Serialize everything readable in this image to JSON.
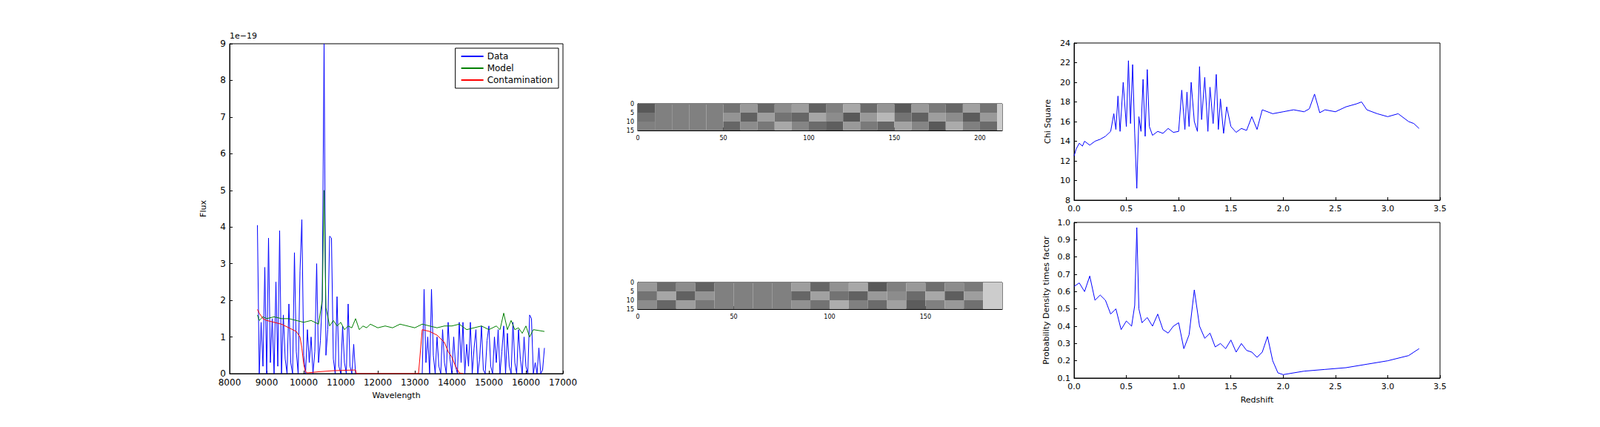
{
  "chart_data": [
    {
      "type": "line",
      "x_label": "Wavelength",
      "y_label": "Flux",
      "y_offset_text": "1e−19",
      "xlim": [
        8000,
        17000
      ],
      "xticks": [
        8000,
        9000,
        10000,
        11000,
        12000,
        13000,
        14000,
        15000,
        16000,
        17000
      ],
      "ylim": [
        0,
        9
      ],
      "yticks": [
        0,
        1,
        2,
        3,
        4,
        5,
        6,
        7,
        8,
        9
      ],
      "grid": false,
      "legend": "upper right",
      "series": [
        {
          "name": "Data",
          "color": "#0000ff",
          "x": [
            8750,
            8800,
            8850,
            8900,
            8950,
            9000,
            9050,
            9100,
            9150,
            9200,
            9250,
            9300,
            9350,
            9400,
            9450,
            9500,
            9550,
            9600,
            9650,
            9700,
            9750,
            9800,
            9850,
            9900,
            9950,
            10000,
            10050,
            10100,
            10150,
            10200,
            10250,
            10300,
            10350,
            10400,
            10450,
            10500,
            10550,
            10600,
            10650,
            10700,
            10750,
            10800,
            10850,
            10900,
            10950,
            11000,
            11050,
            11100,
            11150,
            11200,
            11250,
            11300,
            11350,
            11400,
            12300,
            13200,
            13250,
            13300,
            13350,
            13400,
            13450,
            13500,
            13550,
            13600,
            13650,
            13700,
            13750,
            13800,
            13850,
            13900,
            13950,
            14000,
            14050,
            14100,
            14150,
            14200,
            14250,
            14300,
            14350,
            14400,
            14450,
            14500,
            14550,
            14600,
            14650,
            14700,
            14750,
            14800,
            14850,
            14900,
            14950,
            15000,
            15050,
            15100,
            15150,
            15200,
            15250,
            15300,
            15350,
            15400,
            15450,
            15500,
            15550,
            15600,
            15650,
            15700,
            15750,
            15800,
            15850,
            15900,
            15950,
            16000,
            16050,
            16100,
            16150,
            16200,
            16250,
            16300,
            16350,
            16400,
            16450,
            16500
          ],
          "values": [
            4.05,
            0.0,
            1.4,
            0.2,
            2.9,
            0.0,
            3.7,
            0.3,
            1.5,
            0.0,
            2.5,
            0.2,
            3.9,
            0.0,
            1.6,
            0.4,
            0.0,
            1.9,
            0.3,
            0.0,
            3.3,
            0.6,
            0.0,
            2.8,
            4.2,
            0.5,
            0.0,
            1.2,
            0.3,
            1.0,
            0.0,
            0.6,
            3.0,
            0.3,
            0.9,
            2.0,
            9.0,
            0.5,
            1.2,
            3.75,
            3.7,
            0.4,
            0.0,
            2.1,
            0.2,
            0.0,
            1.3,
            0.3,
            0.0,
            1.9,
            0.2,
            0.0,
            0.8,
            0.0,
            null,
            0.0,
            2.3,
            0.3,
            1.0,
            0.0,
            2.3,
            0.5,
            0.0,
            1.0,
            0.2,
            0.0,
            1.2,
            0.3,
            0.0,
            1.4,
            0.4,
            0.0,
            1.0,
            0.2,
            0.0,
            1.4,
            0.3,
            1.4,
            0.0,
            0.8,
            0.2,
            1.4,
            0.0,
            0.7,
            1.2,
            0.0,
            0.4,
            1.3,
            0.1,
            0.0,
            0.9,
            1.3,
            0.2,
            0.0,
            1.0,
            0.3,
            1.2,
            0.0,
            0.6,
            1.3,
            0.0,
            1.1,
            0.2,
            0.0,
            1.4,
            0.3,
            0.0,
            1.2,
            0.4,
            0.0,
            1.0,
            0.2,
            0.0,
            1.6,
            1.5,
            0.0,
            0.3,
            0.0,
            0.7,
            0.0,
            0.1,
            0.7
          ]
        },
        {
          "name": "Model",
          "color": "#008000",
          "x": [
            8750,
            8800,
            8900,
            9000,
            9200,
            9400,
            9600,
            9800,
            10000,
            10200,
            10400,
            10500,
            10550,
            10600,
            10700,
            10800,
            10900,
            11000,
            11100,
            11200,
            11300,
            11400,
            11500,
            11600,
            11700,
            11800,
            11900,
            12000,
            12200,
            12400,
            12600,
            12800,
            13000,
            13200,
            13400,
            13600,
            13800,
            14000,
            14200,
            14400,
            14600,
            14800,
            15000,
            15200,
            15300,
            15400,
            15500,
            15600,
            15700,
            15800,
            15900,
            16000,
            16100,
            16200,
            16500
          ],
          "values": [
            1.6,
            1.45,
            1.55,
            1.5,
            1.55,
            1.5,
            1.5,
            1.45,
            1.4,
            1.45,
            1.35,
            2.0,
            5.0,
            1.8,
            1.3,
            1.45,
            1.3,
            1.4,
            1.2,
            1.3,
            1.25,
            1.5,
            1.2,
            1.3,
            1.25,
            1.35,
            1.3,
            1.25,
            1.3,
            1.25,
            1.35,
            1.3,
            1.25,
            1.35,
            1.3,
            1.25,
            1.3,
            1.3,
            1.35,
            1.2,
            1.25,
            1.3,
            1.2,
            1.3,
            1.2,
            1.65,
            1.2,
            1.45,
            1.2,
            1.25,
            1.1,
            1.3,
            1.0,
            1.2,
            1.15
          ]
        },
        {
          "name": "Contamination",
          "color": "#ff0000",
          "x": [
            8750,
            8800,
            8900,
            9000,
            9200,
            9400,
            9600,
            9800,
            9900,
            9950,
            10000,
            10050,
            10100,
            10400,
            10800,
            11400,
            11420,
            13100,
            13200,
            13400,
            13600,
            13800,
            13900,
            14000,
            14100,
            14200,
            14300
          ],
          "values": [
            1.75,
            1.65,
            1.5,
            1.45,
            1.4,
            1.35,
            1.25,
            1.15,
            1.0,
            0.7,
            0.25,
            0.05,
            0.02,
            0.05,
            0.08,
            0.1,
            0.0,
            0.0,
            1.2,
            1.15,
            1.05,
            0.85,
            0.6,
            0.45,
            0.2,
            0.02,
            0.0
          ]
        }
      ]
    },
    {
      "type": "image",
      "xlim": [
        0,
        213
      ],
      "xticks": [
        0,
        50,
        100,
        150,
        200
      ],
      "ylim": [
        15,
        0
      ],
      "yticks": [
        0,
        5,
        10,
        15
      ],
      "clim": [
        0,
        1
      ],
      "x_edges": [
        0,
        10,
        20,
        30,
        40,
        50,
        60,
        70,
        80,
        90,
        100,
        110,
        120,
        130,
        140,
        150,
        160,
        170,
        180,
        190,
        200,
        210,
        213
      ],
      "y_edges": [
        0,
        5,
        10,
        15
      ],
      "cells": [
        [
          0.35,
          0.5,
          0.5,
          0.5,
          0.5,
          0.45,
          0.6,
          0.4,
          0.55,
          0.62,
          0.38,
          0.5,
          0.66,
          0.42,
          0.58,
          0.35,
          0.6,
          0.48,
          0.4,
          0.63,
          0.45,
          0.8
        ],
        [
          0.45,
          0.5,
          0.5,
          0.5,
          0.5,
          0.58,
          0.38,
          0.62,
          0.45,
          0.4,
          0.65,
          0.55,
          0.35,
          0.6,
          0.72,
          0.45,
          0.38,
          0.62,
          0.55,
          0.36,
          0.6,
          0.8
        ],
        [
          0.5,
          0.5,
          0.5,
          0.5,
          0.5,
          0.4,
          0.55,
          0.47,
          0.66,
          0.52,
          0.42,
          0.37,
          0.6,
          0.48,
          0.4,
          0.64,
          0.52,
          0.35,
          0.67,
          0.5,
          0.42,
          0.8
        ]
      ]
    },
    {
      "type": "image",
      "xlim": [
        0,
        190
      ],
      "xticks": [
        0,
        50,
        100,
        150
      ],
      "ylim": [
        15,
        0
      ],
      "yticks": [
        0,
        5,
        10,
        15
      ],
      "clim": [
        0,
        1
      ],
      "x_edges": [
        0,
        10,
        20,
        30,
        40,
        50,
        60,
        70,
        80,
        90,
        100,
        110,
        120,
        130,
        140,
        150,
        160,
        170,
        180,
        190
      ],
      "y_edges": [
        0,
        5,
        10,
        15
      ],
      "cells": [
        [
          0.6,
          0.42,
          0.55,
          0.38,
          0.5,
          0.5,
          0.5,
          0.5,
          0.62,
          0.4,
          0.57,
          0.66,
          0.35,
          0.5,
          0.6,
          0.43,
          0.55,
          0.48,
          0.8
        ],
        [
          0.45,
          0.65,
          0.38,
          0.58,
          0.5,
          0.5,
          0.5,
          0.5,
          0.4,
          0.63,
          0.45,
          0.38,
          0.6,
          0.55,
          0.42,
          0.66,
          0.37,
          0.62,
          0.8
        ],
        [
          0.55,
          0.4,
          0.62,
          0.47,
          0.5,
          0.5,
          0.5,
          0.5,
          0.57,
          0.45,
          0.68,
          0.5,
          0.42,
          0.63,
          0.36,
          0.5,
          0.6,
          0.44,
          0.8
        ]
      ]
    },
    {
      "type": "line",
      "y_label": "Chi Square",
      "xlim": [
        0,
        3.5
      ],
      "xticks": [
        {
          "value": 0,
          "label": "0.0"
        },
        0.5,
        {
          "value": 1,
          "label": "1.0"
        },
        1.5,
        {
          "value": 2,
          "label": "2.0"
        },
        2.5,
        {
          "value": 3,
          "label": "3.0"
        },
        3.5
      ],
      "ylim": [
        8,
        24
      ],
      "yticks": [
        8,
        10,
        12,
        14,
        16,
        18,
        20,
        22,
        24
      ],
      "grid": false,
      "series": [
        {
          "color": "#0000ff",
          "x": [
            0,
            0.02,
            0.05,
            0.08,
            0.1,
            0.15,
            0.2,
            0.25,
            0.3,
            0.35,
            0.38,
            0.4,
            0.42,
            0.44,
            0.47,
            0.5,
            0.52,
            0.54,
            0.56,
            0.58,
            0.6,
            0.62,
            0.64,
            0.66,
            0.68,
            0.7,
            0.72,
            0.75,
            0.8,
            0.85,
            0.9,
            0.95,
            1.0,
            1.03,
            1.06,
            1.08,
            1.1,
            1.12,
            1.15,
            1.18,
            1.2,
            1.22,
            1.25,
            1.28,
            1.3,
            1.33,
            1.36,
            1.38,
            1.4,
            1.43,
            1.46,
            1.5,
            1.55,
            1.6,
            1.65,
            1.7,
            1.75,
            1.8,
            1.9,
            2.0,
            2.1,
            2.2,
            2.25,
            2.3,
            2.35,
            2.4,
            2.5,
            2.6,
            2.7,
            2.75,
            2.8,
            2.9,
            3.0,
            3.1,
            3.2,
            3.25,
            3.3
          ],
          "values": [
            12.5,
            13.2,
            13.8,
            13.5,
            14.0,
            13.6,
            14.0,
            14.2,
            14.5,
            15.0,
            16.8,
            15.2,
            18.6,
            15.0,
            20.0,
            15.5,
            22.2,
            15.8,
            21.8,
            14.8,
            9.2,
            16.5,
            15.0,
            20.3,
            14.5,
            21.3,
            15.5,
            14.6,
            15.0,
            14.8,
            15.3,
            14.9,
            15.0,
            19.2,
            15.2,
            19.0,
            15.5,
            20.0,
            16.0,
            15.0,
            21.6,
            16.2,
            20.5,
            15.0,
            19.5,
            15.8,
            20.8,
            15.2,
            18.3,
            14.8,
            17.5,
            15.5,
            14.9,
            15.3,
            15.1,
            16.5,
            15.2,
            17.2,
            16.8,
            17.0,
            17.2,
            17.0,
            17.3,
            18.8,
            16.9,
            17.2,
            17.0,
            17.5,
            17.8,
            18.0,
            17.2,
            16.8,
            16.5,
            16.8,
            16.0,
            15.8,
            15.3
          ]
        }
      ]
    },
    {
      "type": "line",
      "x_label": "Redshift",
      "y_label": "Probability Density times factor",
      "xlim": [
        0,
        3.5
      ],
      "xticks": [
        {
          "value": 0,
          "label": "0.0"
        },
        0.5,
        {
          "value": 1,
          "label": "1.0"
        },
        1.5,
        {
          "value": 2,
          "label": "2.0"
        },
        2.5,
        {
          "value": 3,
          "label": "3.0"
        },
        3.5
      ],
      "ylim": [
        0.1,
        1.0
      ],
      "yticks": [
        0.1,
        0.2,
        0.3,
        0.4,
        0.5,
        0.6,
        0.7,
        0.8,
        0.9,
        {
          "value": 1,
          "label": "1.0"
        }
      ],
      "grid": false,
      "series": [
        {
          "color": "#0000ff",
          "x": [
            0,
            0.05,
            0.1,
            0.15,
            0.2,
            0.25,
            0.3,
            0.35,
            0.4,
            0.45,
            0.5,
            0.55,
            0.58,
            0.6,
            0.62,
            0.65,
            0.7,
            0.75,
            0.8,
            0.85,
            0.9,
            0.95,
            1.0,
            1.05,
            1.1,
            1.15,
            1.2,
            1.25,
            1.3,
            1.35,
            1.4,
            1.45,
            1.5,
            1.55,
            1.6,
            1.65,
            1.7,
            1.75,
            1.8,
            1.85,
            1.9,
            1.95,
            2.0,
            2.2,
            2.4,
            2.6,
            2.8,
            3.0,
            3.2,
            3.3
          ],
          "values": [
            0.63,
            0.65,
            0.6,
            0.69,
            0.55,
            0.58,
            0.55,
            0.47,
            0.5,
            0.38,
            0.43,
            0.4,
            0.52,
            0.97,
            0.5,
            0.42,
            0.45,
            0.4,
            0.47,
            0.38,
            0.36,
            0.4,
            0.42,
            0.27,
            0.35,
            0.61,
            0.4,
            0.33,
            0.36,
            0.28,
            0.3,
            0.27,
            0.32,
            0.25,
            0.3,
            0.26,
            0.25,
            0.22,
            0.25,
            0.34,
            0.2,
            0.13,
            0.12,
            0.14,
            0.15,
            0.16,
            0.18,
            0.2,
            0.23,
            0.27
          ]
        }
      ]
    }
  ]
}
